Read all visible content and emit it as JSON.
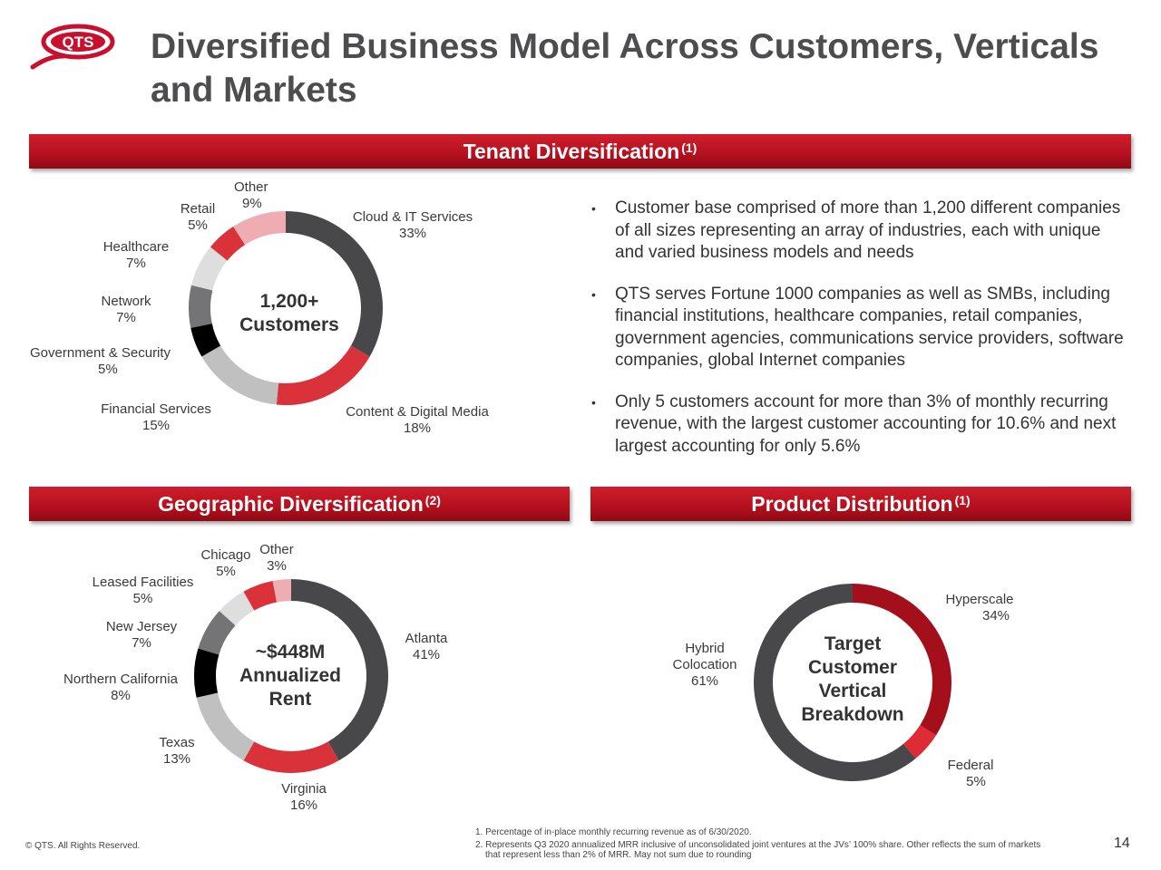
{
  "header": {
    "title_line1": "Diversified Business Model Across Customers, Verticals",
    "title_line2": "and Markets",
    "logo_text": "QTS"
  },
  "banners": {
    "tenant": {
      "label": "Tenant Diversification",
      "sup": "(1)"
    },
    "geographic": {
      "label": "Geographic Diversification",
      "sup": "(2)"
    },
    "product": {
      "label": "Product Distribution",
      "sup": "(1)"
    }
  },
  "bullets": [
    "Customer base comprised of more than 1,200 different companies of all sizes representing an array of industries, each with unique and varied business models and needs",
    "QTS serves Fortune 1000 companies as well as SMBs, including financial institutions, healthcare companies, retail companies, government agencies, communications service providers, software companies, global Internet companies",
    "Only 5 customers account for more than 3% of monthly recurring revenue, with the largest customer accounting for 10.6% and next largest accounting for only 5.6%"
  ],
  "footer": {
    "copyright": "© QTS. All Rights Reserved.",
    "note1": "1. Percentage of in-place monthly recurring revenue as of 6/30/2020.",
    "note2a": "2. Represents Q3 2020 annualized MRR inclusive of unconsolidated joint ventures at the JVs’ 100% share. Other reflects the sum of markets",
    "note2b": "that represent less than 2% of MRR. May not sum due to rounding",
    "page": "14"
  },
  "chart_data": [
    {
      "type": "pie",
      "name": "tenant",
      "center_lines": [
        "1,200+",
        "Customers"
      ],
      "slices": [
        {
          "label": "Cloud & IT Services",
          "value": 33,
          "display": "33%",
          "color": "#48484a"
        },
        {
          "label": "Content & Digital Media",
          "value": 18,
          "display": "18%",
          "color": "#d9323a"
        },
        {
          "label": "Financial Services",
          "value": 15,
          "display": "15%",
          "color": "#c0c0c0"
        },
        {
          "label": "Government & Security",
          "value": 5,
          "display": "5%",
          "color": "#000000"
        },
        {
          "label": "Network",
          "value": 7,
          "display": "7%",
          "color": "#747476"
        },
        {
          "label": "Healthcare",
          "value": 7,
          "display": "7%",
          "color": "#dedede"
        },
        {
          "label": "Retail",
          "value": 5,
          "display": "5%",
          "color": "#d9323a"
        },
        {
          "label": "Other",
          "value": 9,
          "display": "9%",
          "color": "#efadb3"
        }
      ]
    },
    {
      "type": "pie",
      "name": "geographic",
      "center_lines": [
        "~$448M",
        "Annualized",
        "Rent"
      ],
      "slices": [
        {
          "label": "Atlanta",
          "value": 41,
          "display": "41%",
          "color": "#48484a"
        },
        {
          "label": "Virginia",
          "value": 16,
          "display": "16%",
          "color": "#d9323a"
        },
        {
          "label": "Texas",
          "value": 13,
          "display": "13%",
          "color": "#c0c0c0"
        },
        {
          "label": "Northern California",
          "value": 8,
          "display": "8%",
          "color": "#000000"
        },
        {
          "label": "New Jersey",
          "value": 7,
          "display": "7%",
          "color": "#747476"
        },
        {
          "label": "Leased Facilities",
          "value": 5,
          "display": "5%",
          "color": "#dedede"
        },
        {
          "label": "Chicago",
          "value": 5,
          "display": "5%",
          "color": "#d9323a"
        },
        {
          "label": "Other",
          "value": 3,
          "display": "3%",
          "color": "#efadb3"
        }
      ]
    },
    {
      "type": "pie",
      "name": "product",
      "center_lines": [
        "Target",
        "Customer",
        "Vertical",
        "Breakdown"
      ],
      "slices": [
        {
          "label": "Hyperscale",
          "value": 34,
          "display": "34%",
          "color": "#a3101c"
        },
        {
          "label": "Federal",
          "value": 5,
          "display": "5%",
          "color": "#dd2c34"
        },
        {
          "label": "Hybrid Colocation",
          "value": 61,
          "display": "61%",
          "color": "#48484a"
        }
      ]
    }
  ]
}
